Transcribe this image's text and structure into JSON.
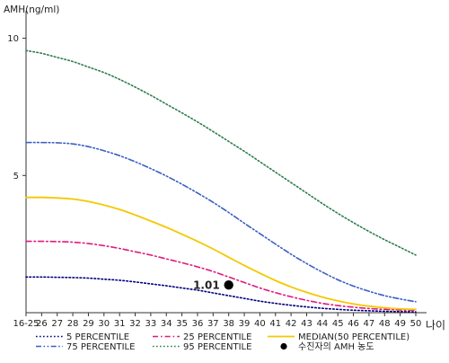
{
  "chart_data": {
    "type": "line",
    "ylabel": "AMH(ng/ml)",
    "xlabel": "나이",
    "ylim": [
      0,
      11
    ],
    "yticks": [
      5,
      10
    ],
    "categories": [
      "16-25",
      "26",
      "27",
      "28",
      "29",
      "30",
      "31",
      "32",
      "33",
      "34",
      "35",
      "36",
      "37",
      "38",
      "39",
      "40",
      "41",
      "42",
      "43",
      "44",
      "45",
      "46",
      "47",
      "48",
      "49",
      "50"
    ],
    "series": [
      {
        "name": "5 PERCENTILE",
        "color": "#000080",
        "dash": "dot",
        "values": [
          1.3,
          1.3,
          1.29,
          1.28,
          1.26,
          1.22,
          1.18,
          1.12,
          1.05,
          0.98,
          0.9,
          0.82,
          0.72,
          0.62,
          0.52,
          0.42,
          0.34,
          0.27,
          0.21,
          0.16,
          0.12,
          0.09,
          0.07,
          0.05,
          0.04,
          0.03
        ]
      },
      {
        "name": "25 PERCENTILE",
        "color": "#e0197d",
        "dash": "dashdot",
        "values": [
          2.6,
          2.6,
          2.59,
          2.57,
          2.52,
          2.44,
          2.34,
          2.22,
          2.1,
          1.96,
          1.82,
          1.67,
          1.5,
          1.3,
          1.1,
          0.9,
          0.73,
          0.58,
          0.45,
          0.34,
          0.26,
          0.2,
          0.15,
          0.12,
          0.1,
          0.09
        ]
      },
      {
        "name": "MEDIAN(50 PERCENTILE)",
        "color": "#f5c800",
        "dash": "solid",
        "values": [
          4.2,
          4.2,
          4.18,
          4.14,
          4.05,
          3.92,
          3.76,
          3.56,
          3.34,
          3.11,
          2.86,
          2.6,
          2.32,
          2.02,
          1.72,
          1.44,
          1.17,
          0.94,
          0.74,
          0.57,
          0.43,
          0.32,
          0.24,
          0.18,
          0.14,
          0.12
        ]
      },
      {
        "name": "75 PERCENTILE",
        "color": "#3a5fc4",
        "dash": "dashdotdot",
        "values": [
          6.2,
          6.2,
          6.19,
          6.15,
          6.05,
          5.9,
          5.72,
          5.5,
          5.25,
          4.98,
          4.68,
          4.36,
          4.02,
          3.65,
          3.26,
          2.88,
          2.5,
          2.13,
          1.79,
          1.48,
          1.2,
          0.97,
          0.78,
          0.62,
          0.5,
          0.4
        ]
      },
      {
        "name": "95 PERCENTILE",
        "color": "#2e7d4f",
        "dash": "dot",
        "values": [
          9.55,
          9.45,
          9.3,
          9.15,
          8.95,
          8.75,
          8.5,
          8.22,
          7.92,
          7.6,
          7.28,
          6.95,
          6.6,
          6.24,
          5.88,
          5.5,
          5.12,
          4.74,
          4.36,
          3.98,
          3.62,
          3.28,
          2.96,
          2.66,
          2.38,
          2.1
        ]
      }
    ],
    "annotations": [
      {
        "name": "수진자의 AMH 농도",
        "x": "38",
        "y": 1.01,
        "label": "1.01"
      }
    ],
    "legend": {
      "placement": "bottom",
      "entries": [
        {
          "label": "5 PERCENTILE",
          "series": 0
        },
        {
          "label": "25 PERCENTILE",
          "series": 1
        },
        {
          "label": "MEDIAN(50 PERCENTILE)",
          "series": 2
        },
        {
          "label": "75 PERCENTILE",
          "series": 3
        },
        {
          "label": "95 PERCENTILE",
          "series": 4
        },
        {
          "label": "수진자의 AMH 농도",
          "marker": true
        }
      ]
    }
  }
}
